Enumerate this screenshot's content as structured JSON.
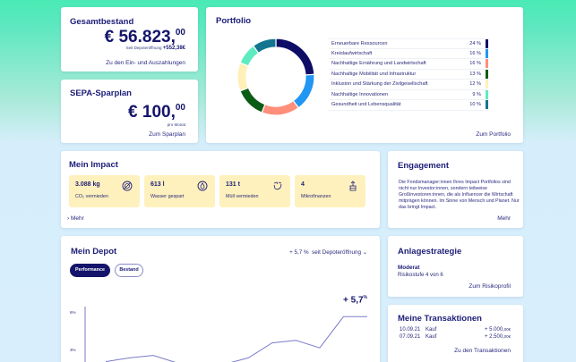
{
  "colors": {
    "primary": "#14146b",
    "accent_green": "#4aeab4",
    "background_blue": "#d8eefc",
    "impact_tile": "#fff1bd",
    "line": "#7a7acb"
  },
  "gesamtbestand": {
    "title": "Gesamtbestand",
    "amount_main": "€ 56.823,",
    "amount_cents": "00",
    "since_label": "Seit Depoteröffnung",
    "since_value": "+552,38€",
    "link": "Zu den Ein- und Auszahlungen"
  },
  "sparplan": {
    "title": "SEPA-Sparplan",
    "amount_main": "€ 100,",
    "amount_cents": "00",
    "per": "pro Monat",
    "link": "Zum Sparplan"
  },
  "portfolio": {
    "title": "Portfolio",
    "link": "Zum Portfolio",
    "items": [
      {
        "label": "Erneuerbare Ressourcen",
        "pct": "24 %",
        "color": "#0d0d66"
      },
      {
        "label": "Kreislaufwirtschaft",
        "pct": "16 %",
        "color": "#2196f3"
      },
      {
        "label": "Nachhaltige Ernährung und Landwirtschaft",
        "pct": "16 %",
        "color": "#ff8f7a"
      },
      {
        "label": "Nachhaltige Mobilität und Infrastruktur",
        "pct": "13 %",
        "color": "#0b5c14"
      },
      {
        "label": "Inklusion und Stärkung der Zivilgesellschaft",
        "pct": "12 %",
        "color": "#fff0b8"
      },
      {
        "label": "Nachhaltige Innovationen",
        "pct": "9 %",
        "color": "#5eebc0"
      },
      {
        "label": "Gesundheit und Lebensqualität",
        "pct": "10 %",
        "color": "#137590"
      }
    ]
  },
  "chart_data": [
    {
      "type": "pie",
      "title": "Portfolio",
      "categories": [
        "Erneuerbare Ressourcen",
        "Kreislaufwirtschaft",
        "Nachhaltige Ernährung und Landwirtschaft",
        "Nachhaltige Mobilität und Infrastruktur",
        "Inklusion und Stärkung der Zivilgesellschaft",
        "Nachhaltige Innovationen",
        "Gesundheit und Lebensqualität"
      ],
      "values": [
        24,
        16,
        16,
        13,
        12,
        9,
        10
      ],
      "colors": [
        "#0d0d66",
        "#2196f3",
        "#ff8f7a",
        "#0b5c14",
        "#fff0b8",
        "#5eebc0",
        "#137590"
      ],
      "donut": true,
      "legend_position": "right"
    },
    {
      "type": "line",
      "title": "Mein Depot – Performance",
      "annotation": "+ 5,7%",
      "ylabel": "",
      "yticks": [
        "3%",
        "6%"
      ],
      "ylim": [
        0,
        6.5
      ],
      "x": [
        0,
        1,
        2,
        3,
        4,
        5,
        6,
        7,
        8,
        9,
        10,
        11
      ],
      "series": [
        {
          "name": "Performance",
          "values": [
            2.1,
            2.4,
            2.6,
            2.0,
            1.9,
            1.9,
            2.4,
            3.6,
            3.8,
            3.2,
            5.7,
            5.7
          ]
        }
      ],
      "grid": false
    }
  ],
  "impact": {
    "title": "Mein Impact",
    "more": "Mehr",
    "tiles": [
      {
        "value": "3.088 kg",
        "label": "CO₂ vermieden",
        "icon": "co2-icon"
      },
      {
        "value": "613 l",
        "label": "Wasser gespart",
        "icon": "water-drop-icon"
      },
      {
        "value": "131 t",
        "label": "Müll vermieden",
        "icon": "recycle-icon"
      },
      {
        "value": "4",
        "label": "Mikrofinanzen",
        "icon": "microfinance-icon"
      }
    ]
  },
  "engagement": {
    "title": "Engagement",
    "text": "Die Fondsmanager:innen Ihres Impact Portfolios sind nicht nur Investor:innen, sondern teilweise Großinvestoren:innen, die als Influencer die Wirtschaft mitprägen können. Im Sinne von Mensch und Planet. Nur das bringt Impact.",
    "link": "Mehr"
  },
  "depot": {
    "title": "Mein Depot",
    "performance_summary": "+ 5,7 %",
    "period": "seit Depoteröffnung",
    "tabs": [
      {
        "label": "Performance",
        "active": true
      },
      {
        "label": "Bestand",
        "active": false
      }
    ],
    "chart_label_main": "+ 5,7",
    "chart_label_unit": "%",
    "ytick_6": "6%",
    "ytick_3": "3%"
  },
  "strategie": {
    "title": "Anlagestrategie",
    "level": "Moderat",
    "risk": "Risikostufe 4 von 6",
    "link": "Zum Risikoprofil"
  },
  "transaktionen": {
    "title": "Meine Transaktionen",
    "rows": [
      {
        "date": "10.09.21",
        "type": "Kauf",
        "amount": "+ 5.000,",
        "cents": "00€"
      },
      {
        "date": "07.09.21",
        "type": "Kauf",
        "amount": "+ 2.500,",
        "cents": "00€"
      }
    ],
    "link": "Zu den Transaktionen"
  }
}
